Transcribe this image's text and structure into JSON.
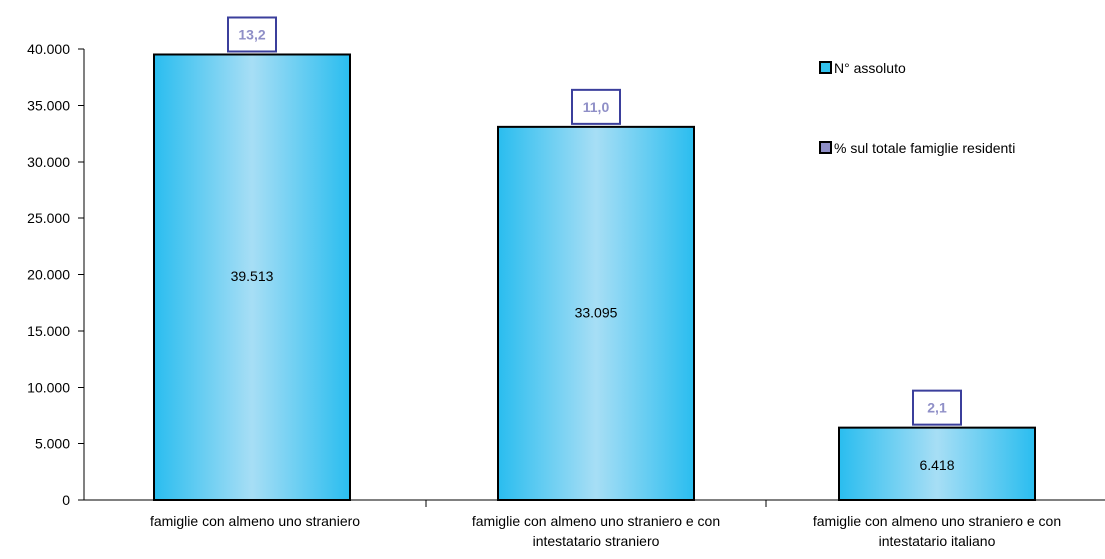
{
  "chart_data": {
    "type": "bar",
    "title": "",
    "xlabel": "",
    "ylabel": "",
    "categories": [
      "famiglie con almeno uno straniero",
      "famiglie con almeno uno straniero e con intestatario straniero",
      "famiglie con almeno uno straniero e con intestatario italiano"
    ],
    "category_lines": [
      [
        "famiglie con almeno uno straniero"
      ],
      [
        "famiglie con almeno uno straniero e  con",
        "intestatario straniero"
      ],
      [
        "famiglie con almeno uno straniero e con",
        "intestatario italiano"
      ]
    ],
    "series": [
      {
        "name": "N° assoluto",
        "values": [
          39513,
          33095,
          6418
        ],
        "labels": [
          "39.513",
          "33.095",
          "6.418"
        ],
        "color": "#33c2ee"
      },
      {
        "name": "% sul totale famiglie residenti",
        "values": [
          13.2,
          11.0,
          2.1
        ],
        "labels": [
          "13,2",
          "11,0",
          "2,1"
        ],
        "color": "#8f8fc7"
      }
    ],
    "ylim": [
      0,
      40000
    ],
    "yticks": [
      0,
      5000,
      10000,
      15000,
      20000,
      25000,
      30000,
      35000,
      40000
    ],
    "ytick_labels": [
      "0",
      "5.000",
      "10.000",
      "15.000",
      "20.000",
      "25.000",
      "30.000",
      "35.000",
      "40.000"
    ],
    "grid": false,
    "legend_position": "top-right",
    "colors": {
      "bar_center": "#a7def5",
      "bar_edge": "#2abdef",
      "pct_border": "#3b3f9c",
      "pct_text": "#8f8fc7"
    }
  }
}
